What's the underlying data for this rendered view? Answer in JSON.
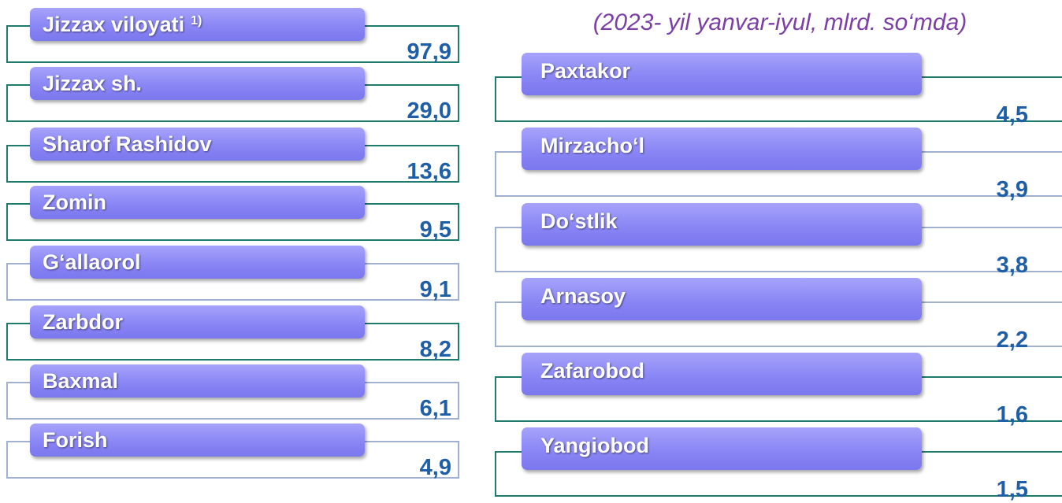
{
  "subtitle": "(2023- yil yanvar-iyul, mlrd. so‘mda)",
  "left": [
    {
      "name": "Jizzax viloyati",
      "note": "1)",
      "value": "97,9"
    },
    {
      "name": "Jizzax sh.",
      "value": "29,0"
    },
    {
      "name": "Sharof Rashidov",
      "value": "13,6"
    },
    {
      "name": "Zomin",
      "value": "9,5"
    },
    {
      "name": "G‘allaorol",
      "value": "9,1"
    },
    {
      "name": "Zarbdor",
      "value": "8,2"
    },
    {
      "name": "Baxmal",
      "value": "6,1"
    },
    {
      "name": "Forish",
      "value": "4,9"
    }
  ],
  "right": [
    {
      "name": "Paxtakor",
      "value": "4,5"
    },
    {
      "name": "Mirzacho‘l",
      "value": "3,9"
    },
    {
      "name": "Do‘stlik",
      "value": "3,8"
    },
    {
      "name": "Arnasoy",
      "value": "2,2"
    },
    {
      "name": "Zafarobod",
      "value": "1,6"
    },
    {
      "name": "Yangiobod",
      "value": "1,5"
    }
  ]
}
